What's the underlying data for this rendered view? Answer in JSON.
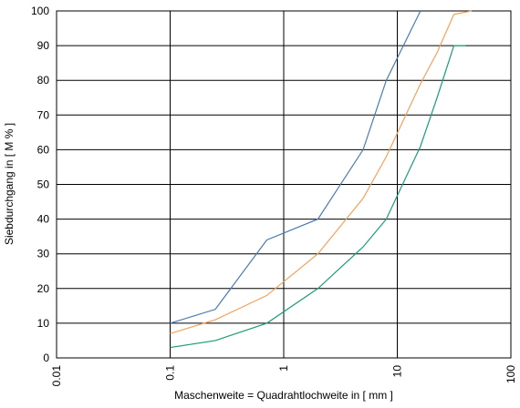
{
  "chart_data": {
    "type": "line",
    "xlabel": "Maschenweite = Quadrahtlochweite in [ mm ]",
    "ylabel": "Siebdurchgang in [ M % ]",
    "xscale": "log",
    "grid": true,
    "xlim": [
      0.01,
      100
    ],
    "xticks": [
      0.01,
      0.1,
      1,
      10,
      100
    ],
    "ylim": [
      0,
      100
    ],
    "yticks": [
      0,
      10,
      20,
      30,
      40,
      50,
      60,
      70,
      80,
      90,
      100
    ],
    "series": [
      {
        "color": "#4a7ab5",
        "x": [
          0.1,
          0.25,
          0.71,
          2,
          5,
          8,
          16
        ],
        "values": [
          10,
          14,
          34,
          40,
          60,
          80,
          100
        ]
      },
      {
        "color": "#f5a05a",
        "x": [
          0.1,
          0.25,
          0.71,
          2,
          5,
          8,
          16,
          22.4,
          31.5,
          45
        ],
        "values": [
          7,
          11,
          18,
          30,
          46,
          58,
          79,
          88,
          99,
          100
        ]
      },
      {
        "color": "#1a9c7a",
        "x": [
          0.1,
          0.25,
          0.71,
          2,
          5,
          8,
          16,
          22.4,
          31.5,
          40
        ],
        "values": [
          3,
          5,
          10,
          20,
          32,
          40,
          61,
          75,
          90,
          90
        ]
      }
    ]
  }
}
